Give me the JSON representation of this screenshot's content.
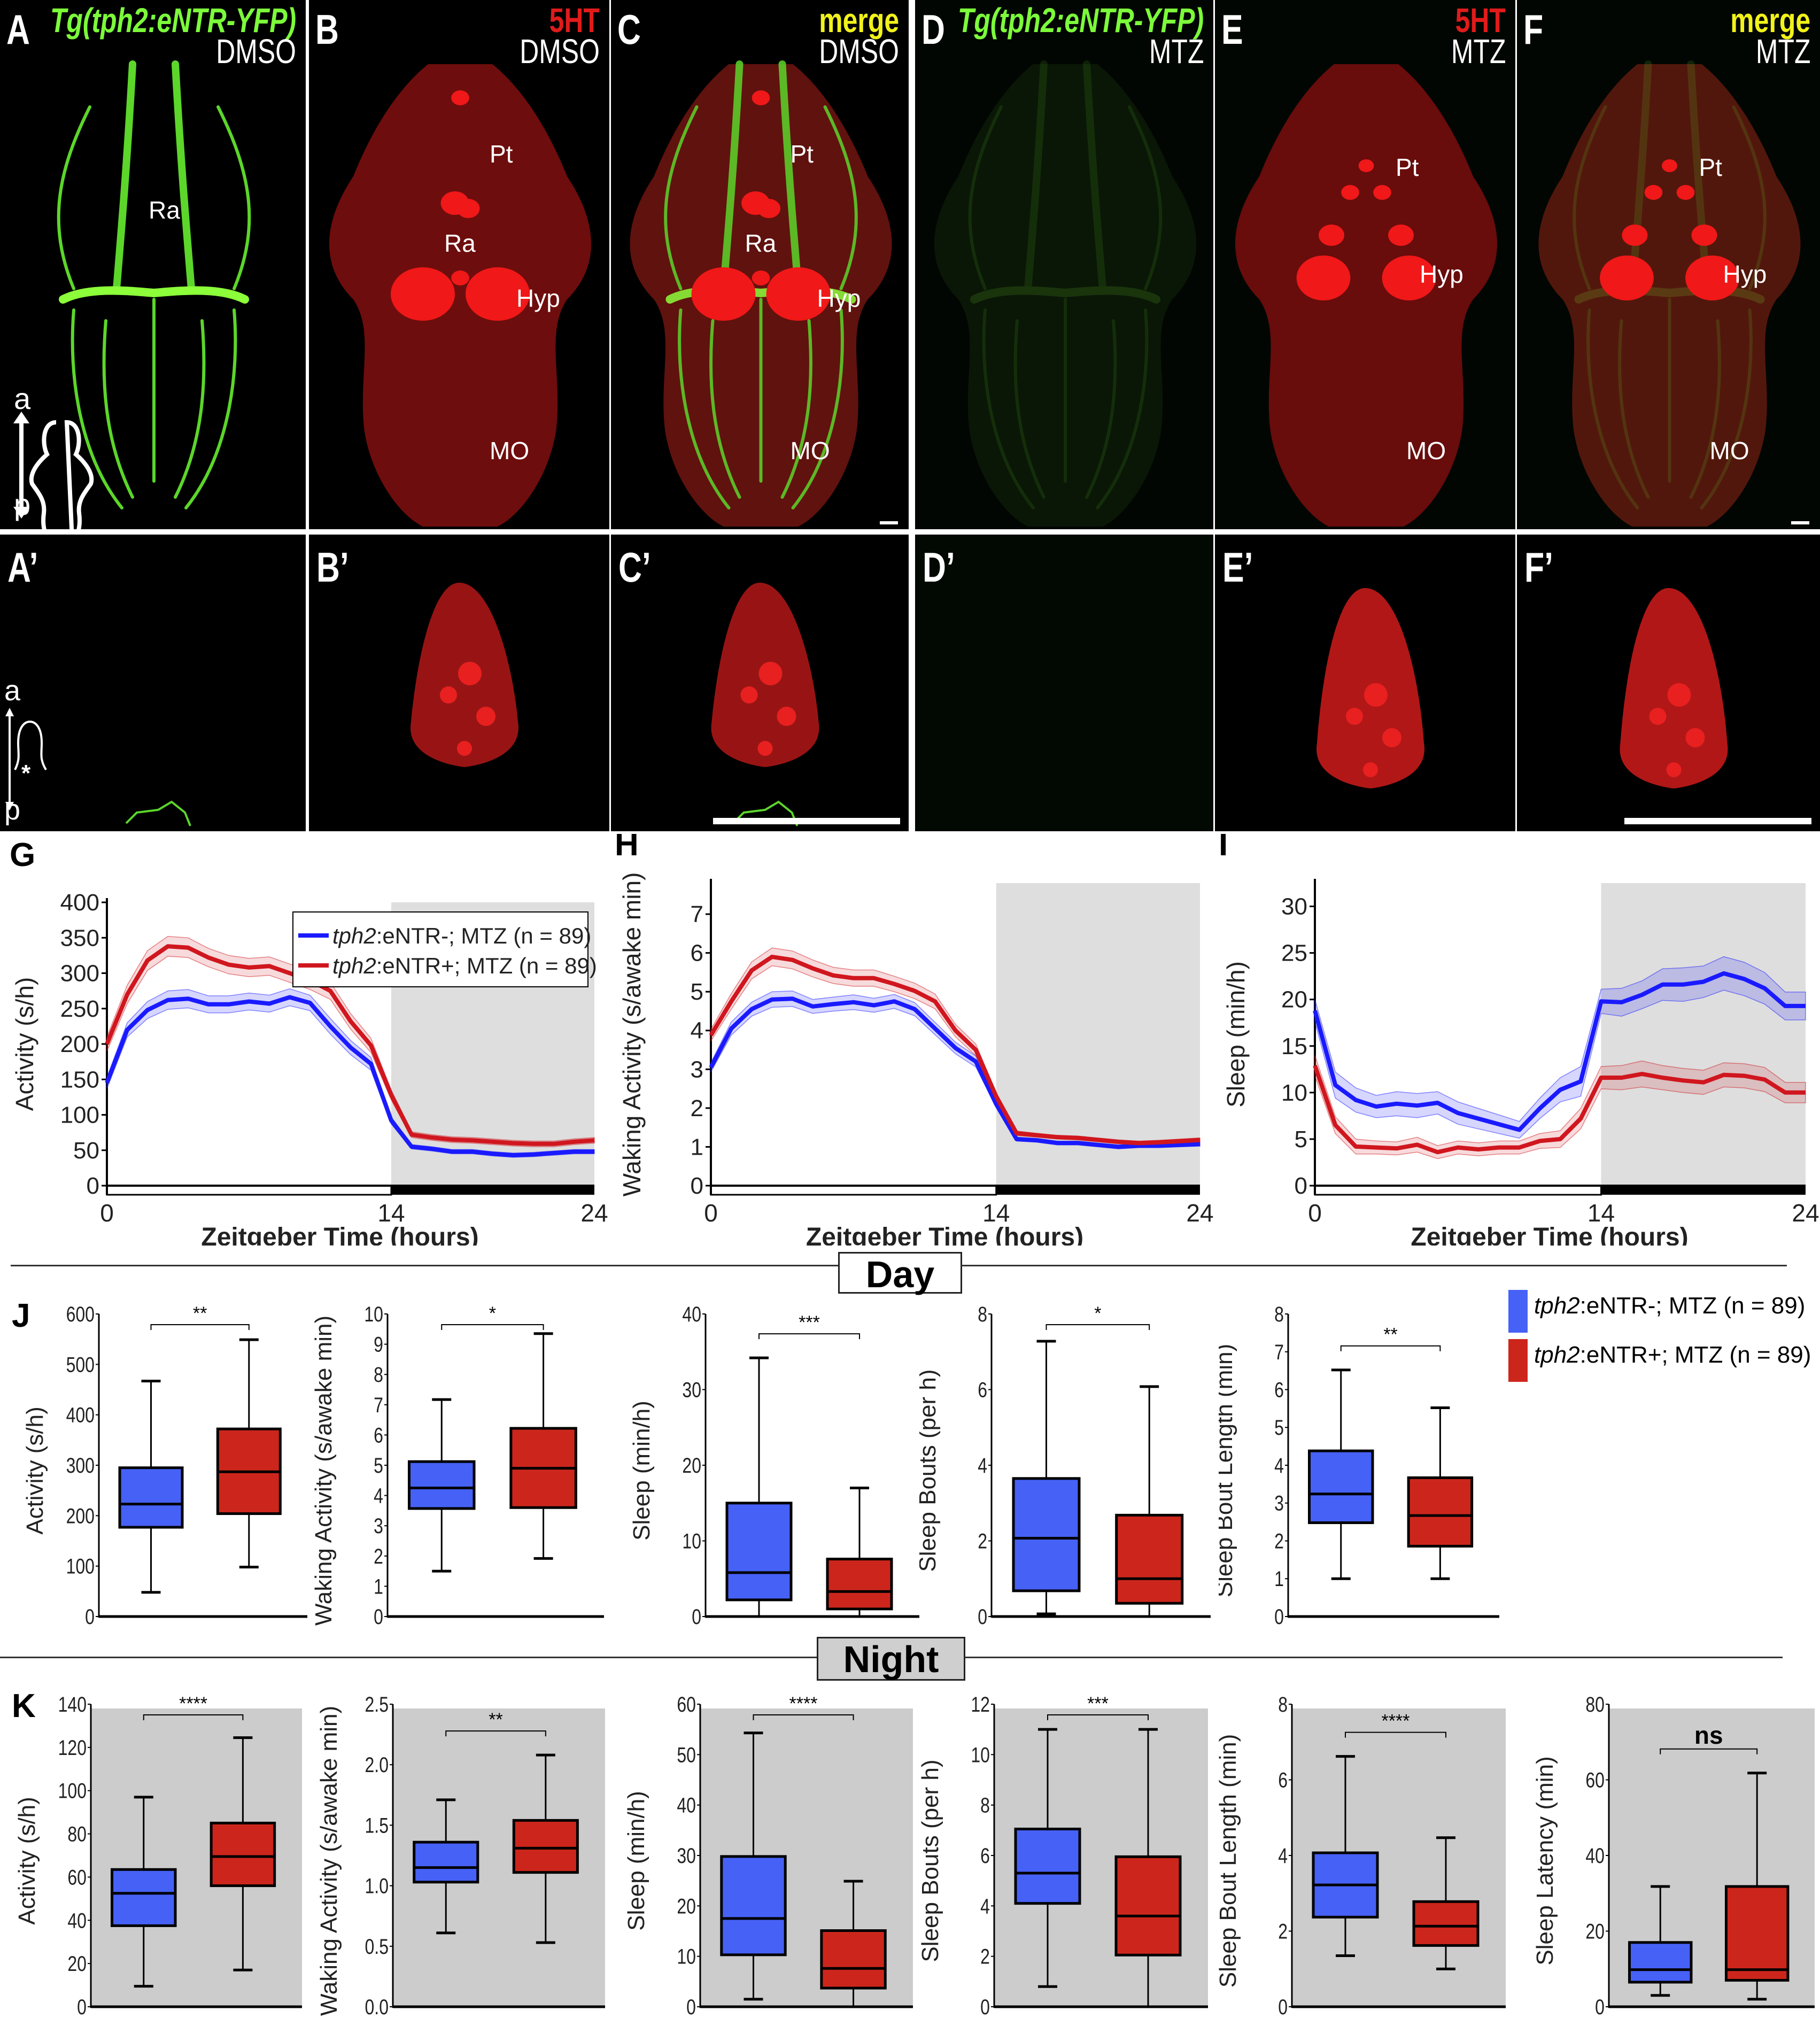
{
  "figure": {
    "microscopy": {
      "top_panels": [
        {
          "letter": "A",
          "title": "Tg(tph2:eNTR-YFP)",
          "title_color": "#7CFC3A",
          "condition": "DMSO",
          "channel": "green"
        },
        {
          "letter": "B",
          "title": "5HT",
          "title_color": "#e01b1b",
          "condition": "DMSO",
          "channel": "red"
        },
        {
          "letter": "C",
          "title": "merge",
          "title_color": "#f2f21a",
          "condition": "DMSO",
          "channel": "merge"
        },
        {
          "letter": "D",
          "title": "Tg(tph2:eNTR-YFP)",
          "title_color": "#7CFC3A",
          "condition": "MTZ",
          "channel": "green-faint"
        },
        {
          "letter": "E",
          "title": "5HT",
          "title_color": "#e01b1b",
          "condition": "MTZ",
          "channel": "red-mtz"
        },
        {
          "letter": "F",
          "title": "merge",
          "title_color": "#f2f21a",
          "condition": "MTZ",
          "channel": "merge-mtz"
        }
      ],
      "bottom_panels": [
        {
          "letter": "A’"
        },
        {
          "letter": "B’"
        },
        {
          "letter": "C’"
        },
        {
          "letter": "D’"
        },
        {
          "letter": "E’"
        },
        {
          "letter": "F’"
        }
      ],
      "region_labels": {
        "pt": "Pt",
        "ra": "Ra",
        "hyp": "Hyp",
        "mo": "MO"
      },
      "orientation": {
        "anterior": "a",
        "posterior": "p",
        "asterisk": "*"
      }
    },
    "legend": {
      "series": [
        {
          "name_italic": "tph2",
          "name_rest": ":eNTR-; MTZ (n = 89)",
          "color": "#1a1aff",
          "box_color": "#4661f5"
        },
        {
          "name_italic": "tph2",
          "name_rest": ":eNTR+; MTZ (n = 89)",
          "color": "#d0161e",
          "box_color": "#cc261c"
        }
      ]
    },
    "sections": {
      "day": "Day",
      "night": "Night"
    }
  },
  "chart_data": [
    {
      "id": "G",
      "type": "line",
      "letter": "G",
      "xlabel": "Zeitgeber Time (hours)",
      "ylabel": "Activity (s/h)",
      "xlim": [
        0,
        24
      ],
      "ylim": [
        0,
        400
      ],
      "xticks": [
        "0",
        "14",
        "24"
      ],
      "xtick_values": [
        0,
        14,
        24
      ],
      "yticks": [
        "0",
        "50",
        "100",
        "150",
        "200",
        "250",
        "300",
        "350",
        "400"
      ],
      "ytick_values": [
        0,
        50,
        100,
        150,
        200,
        250,
        300,
        350,
        400
      ],
      "night_start": 14,
      "legend": "top-right",
      "x": [
        0,
        1,
        2,
        3,
        4,
        5,
        6,
        7,
        8,
        9,
        10,
        11,
        12,
        13,
        14,
        15,
        16,
        17,
        18,
        19,
        20,
        21,
        22,
        23,
        24
      ],
      "series": [
        {
          "name": "tph2:eNTR-; MTZ (n = 89)",
          "color": "#1a1aff",
          "values": [
            145,
            220,
            248,
            262,
            264,
            256,
            256,
            260,
            257,
            266,
            258,
            225,
            195,
            172,
            92,
            55,
            52,
            48,
            48,
            45,
            43,
            44,
            46,
            48,
            48
          ],
          "sem": [
            8,
            10,
            12,
            13,
            13,
            12,
            12,
            12,
            12,
            12,
            11,
            11,
            10,
            9,
            5,
            3,
            3,
            3,
            3,
            3,
            3,
            3,
            3,
            3,
            3
          ]
        },
        {
          "name": "tph2:eNTR+; MTZ (n = 89)",
          "color": "#d0161e",
          "values": [
            200,
            270,
            318,
            338,
            336,
            322,
            312,
            308,
            310,
            300,
            290,
            275,
            232,
            198,
            128,
            72,
            68,
            65,
            64,
            62,
            60,
            59,
            59,
            62,
            64
          ],
          "sem": [
            10,
            13,
            14,
            14,
            14,
            13,
            13,
            13,
            13,
            13,
            13,
            12,
            11,
            10,
            7,
            4,
            4,
            4,
            4,
            4,
            4,
            4,
            4,
            4,
            4
          ]
        }
      ]
    },
    {
      "id": "H",
      "type": "line",
      "letter": "H",
      "xlabel": "Zeitgeber Time (hours)",
      "ylabel": "Waking Activity (s/awake min)",
      "xlim": [
        0,
        24
      ],
      "ylim": [
        0,
        7.8
      ],
      "xticks": [
        "0",
        "14",
        "24"
      ],
      "xtick_values": [
        0,
        14,
        24
      ],
      "yticks": [
        "0",
        "1",
        "2",
        "3",
        "4",
        "5",
        "6",
        "7"
      ],
      "ytick_values": [
        0,
        1,
        2,
        3,
        4,
        5,
        6,
        7
      ],
      "night_start": 14,
      "x": [
        0,
        1,
        2,
        3,
        4,
        5,
        6,
        7,
        8,
        9,
        10,
        11,
        12,
        13,
        14,
        15,
        16,
        17,
        18,
        19,
        20,
        21,
        22,
        23,
        24
      ],
      "series": [
        {
          "name": "tph2:eNTR-; MTZ (n = 89)",
          "color": "#1a1aff",
          "values": [
            3.05,
            4.05,
            4.55,
            4.8,
            4.82,
            4.62,
            4.68,
            4.73,
            4.65,
            4.75,
            4.55,
            4.05,
            3.55,
            3.2,
            2.1,
            1.2,
            1.17,
            1.1,
            1.1,
            1.05,
            1.0,
            1.03,
            1.03,
            1.05,
            1.07
          ],
          "sem": [
            0.12,
            0.17,
            0.18,
            0.2,
            0.2,
            0.18,
            0.18,
            0.19,
            0.18,
            0.18,
            0.17,
            0.16,
            0.15,
            0.14,
            0.08,
            0.05,
            0.05,
            0.05,
            0.05,
            0.05,
            0.05,
            0.05,
            0.05,
            0.05,
            0.05
          ]
        },
        {
          "name": "tph2:eNTR+; MTZ (n = 89)",
          "color": "#d0161e",
          "values": [
            3.88,
            4.75,
            5.55,
            5.9,
            5.82,
            5.6,
            5.42,
            5.35,
            5.35,
            5.2,
            5.02,
            4.75,
            4.0,
            3.5,
            2.3,
            1.35,
            1.3,
            1.25,
            1.23,
            1.18,
            1.13,
            1.1,
            1.12,
            1.15,
            1.18
          ],
          "sem": [
            0.15,
            0.2,
            0.22,
            0.23,
            0.23,
            0.22,
            0.21,
            0.21,
            0.21,
            0.2,
            0.2,
            0.19,
            0.16,
            0.15,
            0.1,
            0.06,
            0.05,
            0.05,
            0.05,
            0.05,
            0.05,
            0.05,
            0.05,
            0.05,
            0.05
          ]
        }
      ]
    },
    {
      "id": "I",
      "type": "line",
      "letter": "I",
      "xlabel": "Zeitgeber Time (hours)",
      "ylabel": "Sleep (min/h)",
      "xlim": [
        0,
        24
      ],
      "ylim": [
        0,
        32.5
      ],
      "xticks": [
        "0",
        "14",
        "24"
      ],
      "xtick_values": [
        0,
        14,
        24
      ],
      "yticks": [
        "0",
        "5",
        "10",
        "15",
        "20",
        "25",
        "30"
      ],
      "ytick_values": [
        0,
        5,
        10,
        15,
        20,
        25,
        30
      ],
      "night_start": 14,
      "x": [
        0,
        1,
        2,
        3,
        4,
        5,
        6,
        7,
        8,
        9,
        10,
        11,
        12,
        13,
        14,
        15,
        16,
        17,
        18,
        19,
        20,
        21,
        22,
        23,
        24
      ],
      "series": [
        {
          "name": "tph2:eNTR-; MTZ (n = 89)",
          "color": "#1a1aff",
          "values": [
            18.8,
            10.8,
            9.2,
            8.5,
            8.8,
            8.6,
            8.9,
            7.8,
            7.2,
            6.6,
            6.0,
            8.3,
            10.3,
            11.2,
            19.8,
            19.7,
            20.5,
            21.6,
            21.6,
            21.9,
            22.8,
            22.2,
            21.2,
            19.3,
            19.3
          ],
          "sem": [
            1.2,
            1.4,
            1.3,
            1.2,
            1.3,
            1.3,
            1.2,
            1.2,
            1.1,
            1.0,
            0.9,
            1.1,
            1.3,
            1.6,
            1.3,
            1.5,
            1.5,
            1.7,
            1.8,
            1.7,
            1.8,
            1.8,
            1.7,
            1.5,
            1.5
          ]
        },
        {
          "name": "tph2:eNTR+; MTZ (n = 89)",
          "color": "#d0161e",
          "values": [
            12.9,
            6.5,
            4.2,
            4.1,
            4.0,
            4.4,
            3.6,
            4.1,
            3.9,
            4.1,
            4.1,
            4.8,
            5.0,
            7.2,
            11.6,
            11.6,
            12.0,
            11.6,
            11.3,
            11.1,
            11.9,
            11.8,
            11.4,
            10.0,
            10.0
          ],
          "sem": [
            1.1,
            0.9,
            0.8,
            0.7,
            0.7,
            0.8,
            0.7,
            0.7,
            0.7,
            0.7,
            0.7,
            0.8,
            0.9,
            1.1,
            1.2,
            1.3,
            1.4,
            1.3,
            1.3,
            1.3,
            1.3,
            1.3,
            1.3,
            1.1,
            1.1
          ]
        }
      ]
    },
    {
      "id": "J1",
      "type": "box",
      "letter": "J",
      "ylabel": "Activity (s/h)",
      "ylim": [
        0,
        600
      ],
      "yticks": [
        "0",
        "100",
        "200",
        "300",
        "400",
        "500",
        "600"
      ],
      "ytick_values": [
        0,
        100,
        200,
        300,
        400,
        500,
        600
      ],
      "significance": "**",
      "night": false,
      "boxes": [
        {
          "min": 48,
          "q1": 177,
          "median": 223,
          "q3": 295,
          "max": 467
        },
        {
          "min": 98,
          "q1": 204,
          "median": 287,
          "q3": 372,
          "max": 549
        }
      ]
    },
    {
      "id": "J2",
      "type": "box",
      "ylabel": "Waking Activity (s/awake min)",
      "ylim": [
        0,
        10
      ],
      "yticks": [
        "0",
        "1",
        "2",
        "3",
        "4",
        "5",
        "6",
        "7",
        "8",
        "9",
        "10"
      ],
      "ytick_values": [
        0,
        1,
        2,
        3,
        4,
        5,
        6,
        7,
        8,
        9,
        10
      ],
      "significance": "*",
      "night": false,
      "boxes": [
        {
          "min": 1.5,
          "q1": 3.57,
          "median": 4.25,
          "q3": 5.12,
          "max": 7.17
        },
        {
          "min": 1.92,
          "q1": 3.6,
          "median": 4.9,
          "q3": 6.22,
          "max": 9.35
        }
      ]
    },
    {
      "id": "J3",
      "type": "box",
      "ylabel": "Sleep (min/h)",
      "ylim": [
        0,
        40
      ],
      "yticks": [
        "0",
        "10",
        "20",
        "30",
        "40"
      ],
      "ytick_values": [
        0,
        10,
        20,
        30,
        40
      ],
      "significance": "***",
      "night": false,
      "boxes": [
        {
          "min": 0,
          "q1": 2.2,
          "median": 5.8,
          "q3": 15.0,
          "max": 34.2
        },
        {
          "min": 0,
          "q1": 1.0,
          "median": 3.3,
          "q3": 7.6,
          "max": 17.0
        }
      ]
    },
    {
      "id": "J4",
      "type": "box",
      "ylabel": "Sleep Bouts (per h)",
      "ylim": [
        0,
        8
      ],
      "yticks": [
        "0",
        "2",
        "4",
        "6",
        "8"
      ],
      "ytick_values": [
        0,
        2,
        4,
        6,
        8
      ],
      "significance": "*",
      "night": false,
      "boxes": [
        {
          "min": 0.07,
          "q1": 0.68,
          "median": 2.07,
          "q3": 3.65,
          "max": 7.28
        },
        {
          "min": 0,
          "q1": 0.35,
          "median": 1.0,
          "q3": 2.68,
          "max": 6.08
        }
      ]
    },
    {
      "id": "J5",
      "type": "box",
      "ylabel": "Sleep Bout Length (min)",
      "ylim": [
        0,
        8
      ],
      "yticks": [
        "0",
        "1",
        "2",
        "3",
        "4",
        "5",
        "6",
        "7",
        "8"
      ],
      "ytick_values": [
        0,
        1,
        2,
        3,
        4,
        5,
        6,
        7,
        8
      ],
      "significance": "**",
      "night": false,
      "boxes": [
        {
          "min": 1.0,
          "q1": 2.48,
          "median": 3.24,
          "q3": 4.38,
          "max": 6.52
        },
        {
          "min": 1.0,
          "q1": 1.86,
          "median": 2.67,
          "q3": 3.67,
          "max": 5.52
        }
      ]
    },
    {
      "id": "K1",
      "type": "box",
      "letter": "K",
      "ylabel": "Activity (s/h)",
      "ylim": [
        0,
        140
      ],
      "yticks": [
        "0",
        "20",
        "40",
        "60",
        "80",
        "100",
        "120",
        "140"
      ],
      "ytick_values": [
        0,
        20,
        40,
        60,
        80,
        100,
        120,
        140
      ],
      "significance": "****",
      "night": true,
      "boxes": [
        {
          "min": 9.5,
          "q1": 37.5,
          "median": 52.5,
          "q3": 63.5,
          "max": 97
        },
        {
          "min": 17,
          "q1": 56,
          "median": 69.5,
          "q3": 85,
          "max": 124.5
        }
      ]
    },
    {
      "id": "K2",
      "type": "box",
      "ylabel": "Waking Activity (s/awake min)",
      "ylim": [
        0,
        2.5
      ],
      "yticks": [
        "0.0",
        "0.5",
        "1.0",
        "1.5",
        "2.0",
        "2.5"
      ],
      "ytick_values": [
        0,
        0.5,
        1.0,
        1.5,
        2.0,
        2.5
      ],
      "significance": "**",
      "night": true,
      "boxes": [
        {
          "min": 0.61,
          "q1": 1.03,
          "median": 1.15,
          "q3": 1.36,
          "max": 1.71
        },
        {
          "min": 0.53,
          "q1": 1.11,
          "median": 1.31,
          "q3": 1.54,
          "max": 2.08
        }
      ]
    },
    {
      "id": "K3",
      "type": "box",
      "ylabel": "Sleep (min/h)",
      "ylim": [
        0,
        60
      ],
      "yticks": [
        "0",
        "10",
        "20",
        "30",
        "40",
        "50",
        "60"
      ],
      "ytick_values": [
        0,
        10,
        20,
        30,
        40,
        50,
        60
      ],
      "significance": "****",
      "night": true,
      "boxes": [
        {
          "min": 1.5,
          "q1": 10.3,
          "median": 17.5,
          "q3": 29.8,
          "max": 54.3
        },
        {
          "min": 0,
          "q1": 3.7,
          "median": 7.6,
          "q3": 15.1,
          "max": 24.9
        }
      ]
    },
    {
      "id": "K4",
      "type": "box",
      "ylabel": "Sleep Bouts (per h)",
      "ylim": [
        0,
        12
      ],
      "yticks": [
        "0",
        "2",
        "4",
        "6",
        "8",
        "10",
        "12"
      ],
      "ytick_values": [
        0,
        2,
        4,
        6,
        8,
        10,
        12
      ],
      "significance": "***",
      "night": true,
      "boxes": [
        {
          "min": 0.8,
          "q1": 4.1,
          "median": 5.3,
          "q3": 7.05,
          "max": 11
        },
        {
          "min": 0,
          "q1": 2.05,
          "median": 3.6,
          "q3": 5.95,
          "max": 11
        }
      ]
    },
    {
      "id": "K5",
      "type": "box",
      "ylabel": "Sleep Bout Length (min)",
      "ylim": [
        0,
        8
      ],
      "yticks": [
        "0",
        "2",
        "4",
        "6",
        "8"
      ],
      "ytick_values": [
        0,
        2,
        4,
        6,
        8
      ],
      "significance": "****",
      "night": true,
      "boxes": [
        {
          "min": 1.35,
          "q1": 2.37,
          "median": 3.22,
          "q3": 4.07,
          "max": 6.62
        },
        {
          "min": 1.0,
          "q1": 1.62,
          "median": 2.13,
          "q3": 2.78,
          "max": 4.47
        }
      ]
    },
    {
      "id": "K6",
      "type": "box",
      "ylabel": "Sleep Latency (min)",
      "ylim": [
        0,
        80
      ],
      "yticks": [
        "0",
        "20",
        "40",
        "60",
        "80"
      ],
      "ytick_values": [
        0,
        20,
        40,
        60,
        80
      ],
      "significance": "ns",
      "night": true,
      "boxes": [
        {
          "min": 3,
          "q1": 6.5,
          "median": 9.8,
          "q3": 17,
          "max": 31.8
        },
        {
          "min": 2,
          "q1": 7,
          "median": 9.8,
          "q3": 31.8,
          "max": 61.8
        }
      ]
    }
  ]
}
